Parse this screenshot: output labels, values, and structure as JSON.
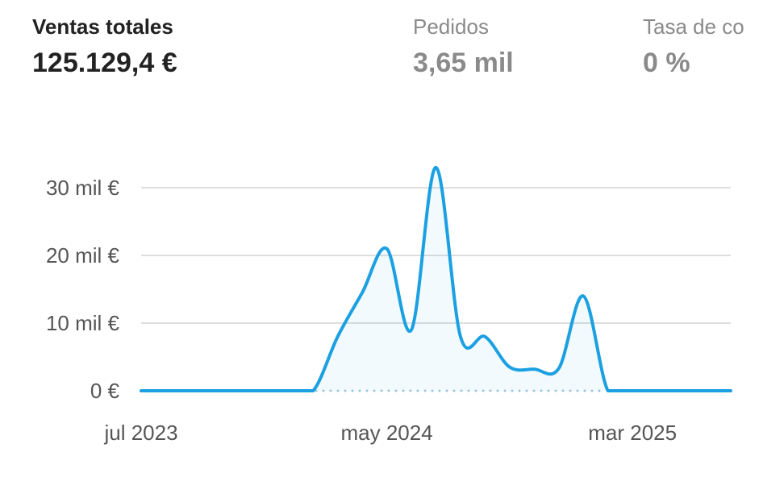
{
  "metrics": [
    {
      "label": "Ventas totales",
      "value": "125.129,4 €"
    },
    {
      "label": "Pedidos",
      "value": "3,65 mil"
    },
    {
      "label": "Tasa de co",
      "value": "0 %"
    }
  ],
  "chart_data": {
    "type": "line",
    "categories": [
      "jul 2023",
      null,
      null,
      null,
      null,
      null,
      null,
      null,
      null,
      null,
      "may 2024",
      null,
      null,
      null,
      null,
      null,
      null,
      null,
      null,
      null,
      "mar 2025",
      null,
      null,
      null,
      null
    ],
    "series": [
      {
        "color": "#1ba0e2",
        "values": [
          0,
          0,
          0,
          0,
          0,
          0,
          0,
          0,
          8000,
          14500,
          21000,
          9000,
          33000,
          8000,
          8000,
          3500,
          3200,
          3300,
          14000,
          0,
          0,
          0,
          0,
          0,
          0
        ]
      }
    ],
    "ylim": [
      0,
      35000
    ],
    "yticks": [
      {
        "value": 0,
        "label": "0 €"
      },
      {
        "value": 10000,
        "label": "10 mil €"
      },
      {
        "value": 20000,
        "label": "20 mil €"
      },
      {
        "value": 30000,
        "label": "30 mil €"
      }
    ],
    "grid": true
  }
}
